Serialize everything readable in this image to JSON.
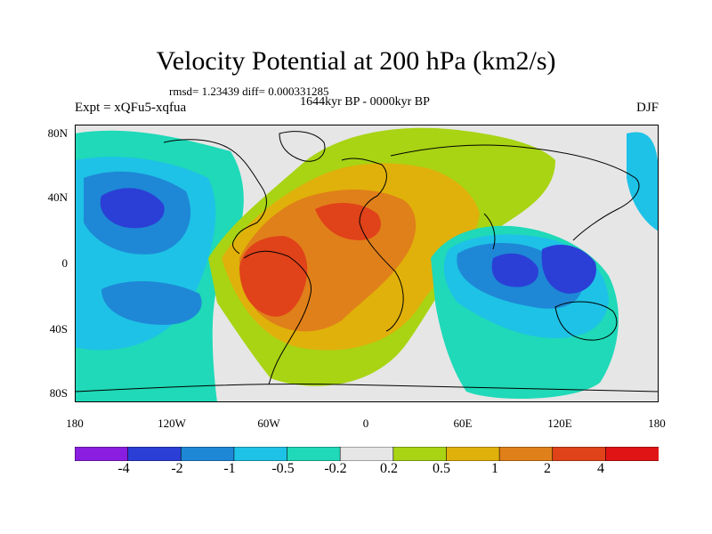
{
  "title": "Velocity Potential at 200 hPa (km2/s)",
  "stats": "rmsd= 1.23439 diff= 0.000331285",
  "period": "1644kyr BP - 0000kyr BP",
  "expt": "Expt = xQFu5-xqfua",
  "season": "DJF",
  "map": {
    "y_labels": [
      "80N",
      "40N",
      "0",
      "40S",
      "80S"
    ],
    "x_labels": [
      "180",
      "120W",
      "60W",
      "0",
      "60E",
      "120E",
      "180"
    ]
  },
  "colorbar": {
    "labels": [
      "-4",
      "-2",
      "-1",
      "-0.5",
      "-0.2",
      "0.2",
      "0.5",
      "1",
      "2",
      "4"
    ],
    "colors": [
      "#8a1ee0",
      "#2b3fd6",
      "#1e88d6",
      "#1ec2e6",
      "#1fd9b8",
      "#e6e6e6",
      "#a8d414",
      "#e0b10a",
      "#e0801a",
      "#e0421a",
      "#e01414"
    ]
  },
  "palette": {
    "ocean_neutral": "#e6e6e6",
    "coast": "#000000"
  }
}
